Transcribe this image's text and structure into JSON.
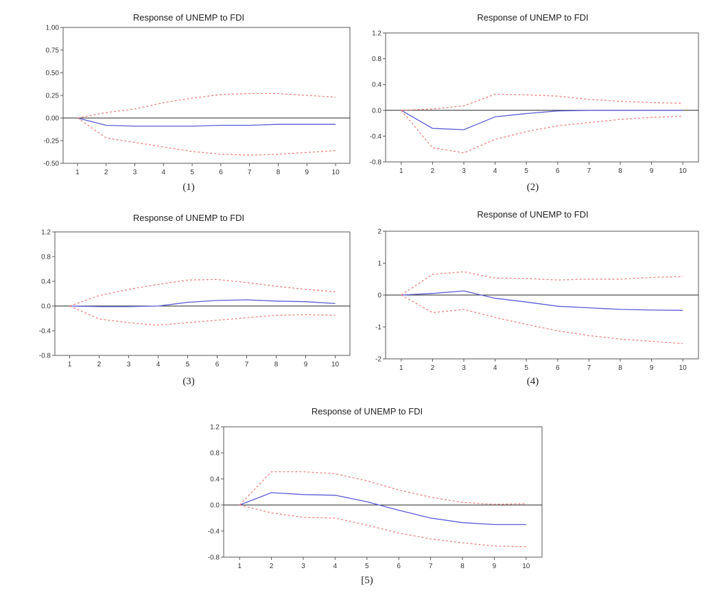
{
  "chart_data": [
    {
      "type": "line",
      "title": "Response of UNEMP to FDI",
      "caption": "(1)",
      "x": [
        1,
        2,
        3,
        4,
        5,
        6,
        7,
        8,
        9,
        10
      ],
      "ylim": [
        -0.5,
        1.0
      ],
      "yticks": [
        "1.00",
        "0.75",
        "0.50",
        "0.25",
        "0.00",
        "-0.25",
        "-0.50"
      ],
      "ytick_values": [
        1.0,
        0.75,
        0.5,
        0.25,
        0.0,
        -0.25,
        -0.5
      ],
      "series": [
        {
          "role": "response",
          "values": [
            0.0,
            -0.08,
            -0.09,
            -0.09,
            -0.09,
            -0.08,
            -0.08,
            -0.07,
            -0.07,
            -0.07
          ]
        },
        {
          "role": "upper",
          "values": [
            0.0,
            0.06,
            0.1,
            0.17,
            0.22,
            0.26,
            0.27,
            0.27,
            0.25,
            0.23
          ]
        },
        {
          "role": "lower",
          "values": [
            0.0,
            -0.22,
            -0.27,
            -0.32,
            -0.37,
            -0.4,
            -0.41,
            -0.4,
            -0.38,
            -0.36
          ]
        }
      ]
    },
    {
      "type": "line",
      "title": "Response of UNEMP to FDI",
      "caption": "(2)",
      "x": [
        1,
        2,
        3,
        4,
        5,
        6,
        7,
        8,
        9,
        10
      ],
      "ylim": [
        -0.8,
        1.2
      ],
      "yticks": [
        "1.2",
        "0.8",
        "0.4",
        "0.0",
        "-0.4",
        "-0.8"
      ],
      "ytick_values": [
        1.2,
        0.8,
        0.4,
        0.0,
        -0.4,
        -0.8
      ],
      "series": [
        {
          "role": "response",
          "values": [
            0.0,
            -0.28,
            -0.3,
            -0.1,
            -0.05,
            -0.01,
            0.0,
            0.0,
            0.0,
            0.0
          ]
        },
        {
          "role": "upper",
          "values": [
            0.0,
            0.02,
            0.07,
            0.25,
            0.24,
            0.22,
            0.17,
            0.14,
            0.12,
            0.11
          ]
        },
        {
          "role": "lower",
          "values": [
            0.0,
            -0.58,
            -0.66,
            -0.45,
            -0.33,
            -0.24,
            -0.19,
            -0.14,
            -0.11,
            -0.09
          ]
        }
      ]
    },
    {
      "type": "line",
      "title": "Response of UNEMP to FDI",
      "caption": "(3)",
      "x": [
        1,
        2,
        3,
        4,
        5,
        6,
        7,
        8,
        9,
        10
      ],
      "ylim": [
        -0.8,
        1.2
      ],
      "yticks": [
        "1.2",
        "0.8",
        "0.4",
        "0.0",
        "-0.4",
        "-0.8"
      ],
      "ytick_values": [
        1.2,
        0.8,
        0.4,
        0.0,
        -0.4,
        -0.8
      ],
      "series": [
        {
          "role": "response",
          "values": [
            0.0,
            -0.01,
            -0.01,
            0.0,
            0.06,
            0.09,
            0.1,
            0.08,
            0.07,
            0.04
          ]
        },
        {
          "role": "upper",
          "values": [
            0.0,
            0.17,
            0.27,
            0.35,
            0.42,
            0.43,
            0.38,
            0.32,
            0.27,
            0.23
          ]
        },
        {
          "role": "lower",
          "values": [
            0.0,
            -0.21,
            -0.27,
            -0.31,
            -0.27,
            -0.23,
            -0.19,
            -0.15,
            -0.14,
            -0.15
          ]
        }
      ]
    },
    {
      "type": "line",
      "title": "Response of UNEMP to FDI",
      "caption": "(4)",
      "x": [
        1,
        2,
        3,
        4,
        5,
        6,
        7,
        8,
        9,
        10
      ],
      "ylim": [
        -2,
        2
      ],
      "yticks": [
        "2",
        "1",
        "0",
        "-1",
        "-2"
      ],
      "ytick_values": [
        2,
        1,
        0,
        -1,
        -2
      ],
      "series": [
        {
          "role": "response",
          "values": [
            0.0,
            0.05,
            0.13,
            -0.1,
            -0.22,
            -0.35,
            -0.4,
            -0.45,
            -0.47,
            -0.48
          ]
        },
        {
          "role": "upper",
          "values": [
            0.0,
            0.65,
            0.73,
            0.53,
            0.52,
            0.47,
            0.5,
            0.5,
            0.55,
            0.58
          ]
        },
        {
          "role": "lower",
          "values": [
            0.0,
            -0.55,
            -0.45,
            -0.7,
            -0.92,
            -1.12,
            -1.27,
            -1.38,
            -1.45,
            -1.52
          ]
        }
      ]
    },
    {
      "type": "line",
      "title": "Response of UNEMP to FDI",
      "caption": "[5)",
      "x": [
        1,
        2,
        3,
        4,
        5,
        6,
        7,
        8,
        9,
        10
      ],
      "ylim": [
        -0.8,
        1.2
      ],
      "yticks": [
        "1.2",
        "0.8",
        "0.4",
        "0.0",
        "-0.4",
        "-0.8"
      ],
      "ytick_values": [
        1.2,
        0.8,
        0.4,
        0.0,
        -0.4,
        -0.8
      ],
      "series": [
        {
          "role": "response",
          "values": [
            0.0,
            0.19,
            0.16,
            0.15,
            0.05,
            -0.08,
            -0.2,
            -0.27,
            -0.3,
            -0.3
          ]
        },
        {
          "role": "upper",
          "values": [
            0.0,
            0.51,
            0.51,
            0.48,
            0.37,
            0.23,
            0.12,
            0.04,
            0.01,
            0.02
          ]
        },
        {
          "role": "lower",
          "values": [
            0.0,
            -0.12,
            -0.19,
            -0.2,
            -0.31,
            -0.43,
            -0.52,
            -0.58,
            -0.63,
            -0.64
          ]
        }
      ]
    }
  ],
  "style": {
    "response_color": "#5a5ad8",
    "band_color": "#f07f7f",
    "axis_color": "#555555",
    "zero_line_color": "#222222"
  }
}
